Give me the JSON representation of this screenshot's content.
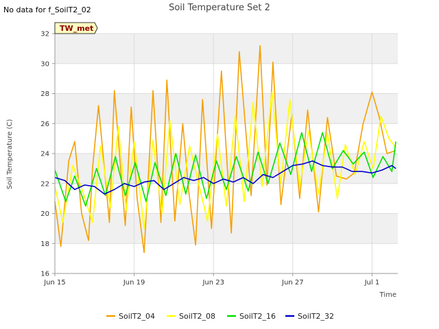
{
  "header": {
    "title": "Soil Temperature Set 2",
    "no_data": "No data for f_SoilT2_02",
    "tag": "TW_met"
  },
  "chart_data": {
    "type": "line",
    "title": "Soil Temperature Set 2",
    "xlabel": "Time",
    "ylabel": "Soil Temperature (C)",
    "ylim": [
      16,
      32
    ],
    "yticks": [
      16,
      18,
      20,
      22,
      24,
      26,
      28,
      30,
      32
    ],
    "xlim_days": [
      0,
      17.3
    ],
    "xticks": [
      {
        "day": 0,
        "label": "Jun 15"
      },
      {
        "day": 4,
        "label": "Jun 19"
      },
      {
        "day": 8,
        "label": "Jun 23"
      },
      {
        "day": 12,
        "label": "Jun 27"
      },
      {
        "day": 16,
        "label": "Jul 1"
      }
    ],
    "grid": true,
    "legend_position": "bottom",
    "series": [
      {
        "name": "SoilT2_04",
        "color": "#f5a000",
        "x": [
          0,
          0.3,
          0.7,
          1.0,
          1.35,
          1.7,
          1.9,
          2.2,
          2.75,
          3.0,
          3.55,
          3.85,
          4.15,
          4.5,
          4.95,
          5.35,
          5.65,
          6.05,
          6.45,
          6.75,
          7.1,
          7.45,
          7.9,
          8.4,
          8.9,
          9.3,
          9.9,
          10.35,
          10.7,
          11.0,
          11.4,
          11.95,
          12.35,
          12.75,
          13.3,
          13.75,
          14.2,
          14.7,
          15.1,
          15.55,
          16.0,
          16.35,
          16.75,
          17.2
        ],
        "y": [
          20.8,
          17.8,
          23.5,
          24.8,
          20.0,
          18.2,
          23.0,
          27.2,
          19.4,
          28.2,
          19.2,
          27.1,
          21.0,
          17.4,
          28.2,
          19.4,
          28.9,
          19.5,
          26.0,
          21.5,
          17.9,
          27.6,
          19.0,
          29.5,
          18.7,
          30.8,
          21.2,
          31.2,
          21.9,
          30.1,
          20.6,
          26.6,
          21.0,
          26.9,
          20.1,
          26.4,
          22.5,
          22.3,
          22.7,
          26.0,
          28.1,
          26.5,
          24.0,
          24.2
        ]
      },
      {
        "name": "SoilT2_08",
        "color": "#ffff00",
        "x": [
          0,
          0.4,
          0.9,
          1.4,
          1.9,
          2.3,
          2.8,
          3.2,
          3.6,
          4.0,
          4.5,
          4.95,
          5.4,
          5.8,
          6.3,
          6.8,
          7.25,
          7.7,
          8.2,
          8.65,
          9.1,
          9.55,
          10.0,
          10.45,
          10.95,
          11.4,
          11.85,
          12.35,
          12.8,
          13.3,
          13.75,
          14.25,
          14.65,
          15.15,
          15.6,
          16.05,
          16.45,
          16.85,
          17.2
        ],
        "y": [
          21.8,
          19.4,
          23.2,
          21.5,
          19.4,
          24.5,
          20.4,
          25.8,
          20.2,
          24.8,
          19.0,
          24.9,
          20.0,
          26.2,
          20.6,
          24.5,
          22.0,
          19.5,
          25.3,
          20.5,
          26.5,
          20.8,
          27.4,
          21.8,
          28.1,
          22.0,
          27.6,
          21.8,
          25.5,
          21.3,
          25.4,
          21.0,
          24.6,
          22.6,
          24.8,
          23.0,
          26.5,
          25.0,
          24.4
        ]
      },
      {
        "name": "SoilT2_16",
        "color": "#00e000",
        "x": [
          0,
          0.55,
          1.0,
          1.55,
          2.1,
          2.55,
          3.05,
          3.55,
          4.05,
          4.6,
          5.05,
          5.6,
          6.1,
          6.6,
          7.1,
          7.65,
          8.15,
          8.65,
          9.15,
          9.75,
          10.25,
          10.75,
          11.35,
          11.9,
          12.45,
          12.95,
          13.5,
          14.0,
          14.55,
          15.05,
          15.6,
          16.05,
          16.55,
          17.0,
          17.2
        ],
        "y": [
          22.9,
          20.8,
          22.5,
          20.5,
          23.0,
          21.2,
          23.8,
          21.2,
          23.4,
          20.8,
          23.4,
          21.2,
          24.0,
          21.3,
          23.9,
          21.0,
          23.5,
          21.6,
          23.8,
          21.5,
          24.1,
          22.0,
          24.7,
          22.6,
          25.4,
          22.8,
          25.4,
          23.0,
          24.2,
          23.3,
          24.1,
          22.4,
          23.8,
          22.8,
          24.8
        ]
      },
      {
        "name": "SoilT2_32",
        "color": "#0000cc",
        "x": [
          0,
          0.5,
          1.0,
          1.5,
          2.0,
          2.5,
          3.0,
          3.5,
          4.0,
          4.5,
          5.0,
          5.5,
          6.0,
          6.5,
          7.0,
          7.5,
          8.0,
          8.5,
          9.0,
          9.5,
          10.0,
          10.5,
          11.0,
          11.5,
          12.0,
          12.5,
          13.0,
          13.5,
          14.0,
          14.5,
          15.0,
          15.5,
          16.0,
          16.5,
          17.0,
          17.2
        ],
        "y": [
          22.4,
          22.2,
          21.6,
          21.9,
          21.8,
          21.3,
          21.6,
          22.0,
          21.8,
          22.1,
          22.2,
          21.6,
          22.0,
          22.4,
          22.2,
          22.4,
          22.0,
          22.3,
          22.1,
          22.4,
          22.0,
          22.6,
          22.4,
          22.8,
          23.2,
          23.3,
          23.5,
          23.2,
          23.1,
          23.1,
          22.8,
          22.8,
          22.7,
          22.9,
          23.2,
          23.0
        ]
      }
    ]
  }
}
